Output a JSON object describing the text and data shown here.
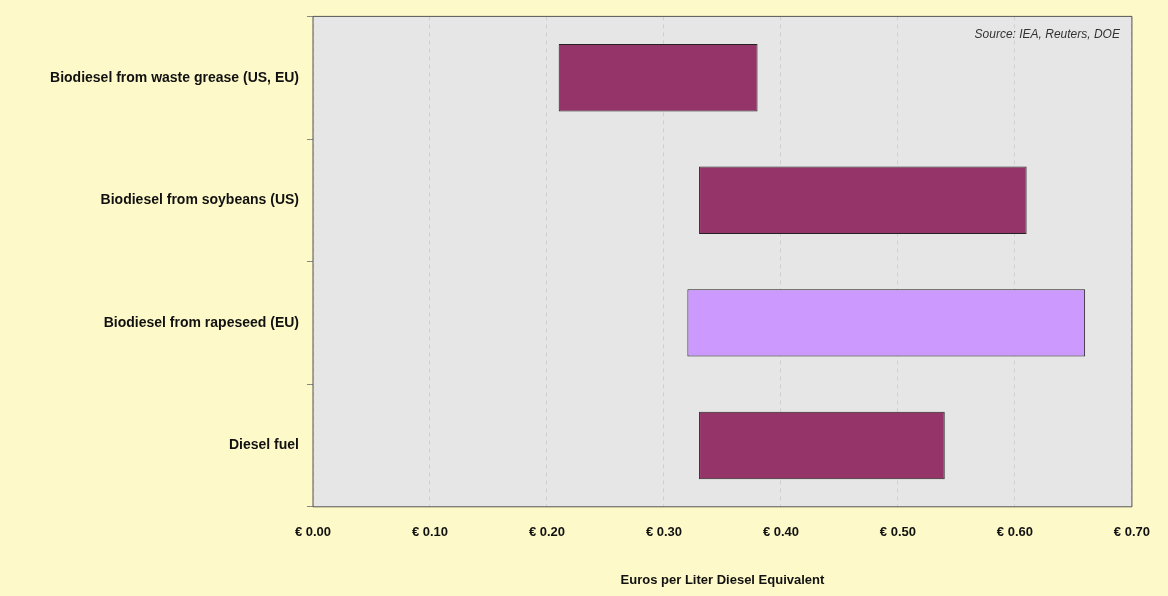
{
  "chart_data": {
    "type": "bar",
    "orientation": "horizontal",
    "xlabel": "Euros per Liter Diesel Equivalent",
    "categories": [
      "Biodiesel from waste grease (US, EU)",
      "Biodiesel from soybeans (US)",
      "Biodiesel from rapeseed (EU)",
      "Diesel fuel"
    ],
    "base": [
      0.21,
      0.33,
      0.32,
      0.33
    ],
    "values": [
      0.17,
      0.28,
      0.34,
      0.21
    ],
    "colors": [
      "#943469",
      "#943469",
      "#cc99ff",
      "#943469"
    ],
    "xlim": [
      0,
      0.7
    ],
    "xticks": [
      {
        "value": 0,
        "label": "€ 0.00"
      },
      {
        "value": 0.1,
        "label": "€ 0.10"
      },
      {
        "value": 0.2,
        "label": "€ 0.20"
      },
      {
        "value": 0.3,
        "label": "€ 0.30"
      },
      {
        "value": 0.4,
        "label": "€ 0.40"
      },
      {
        "value": 0.5,
        "label": "€ 0.50"
      },
      {
        "value": 0.6,
        "label": "€ 0.60"
      },
      {
        "value": 0.7,
        "label": "€ 0.70"
      }
    ],
    "grid": "x",
    "legend": false,
    "annotations": [
      "Source: IEA, Reuters, DOE"
    ]
  }
}
